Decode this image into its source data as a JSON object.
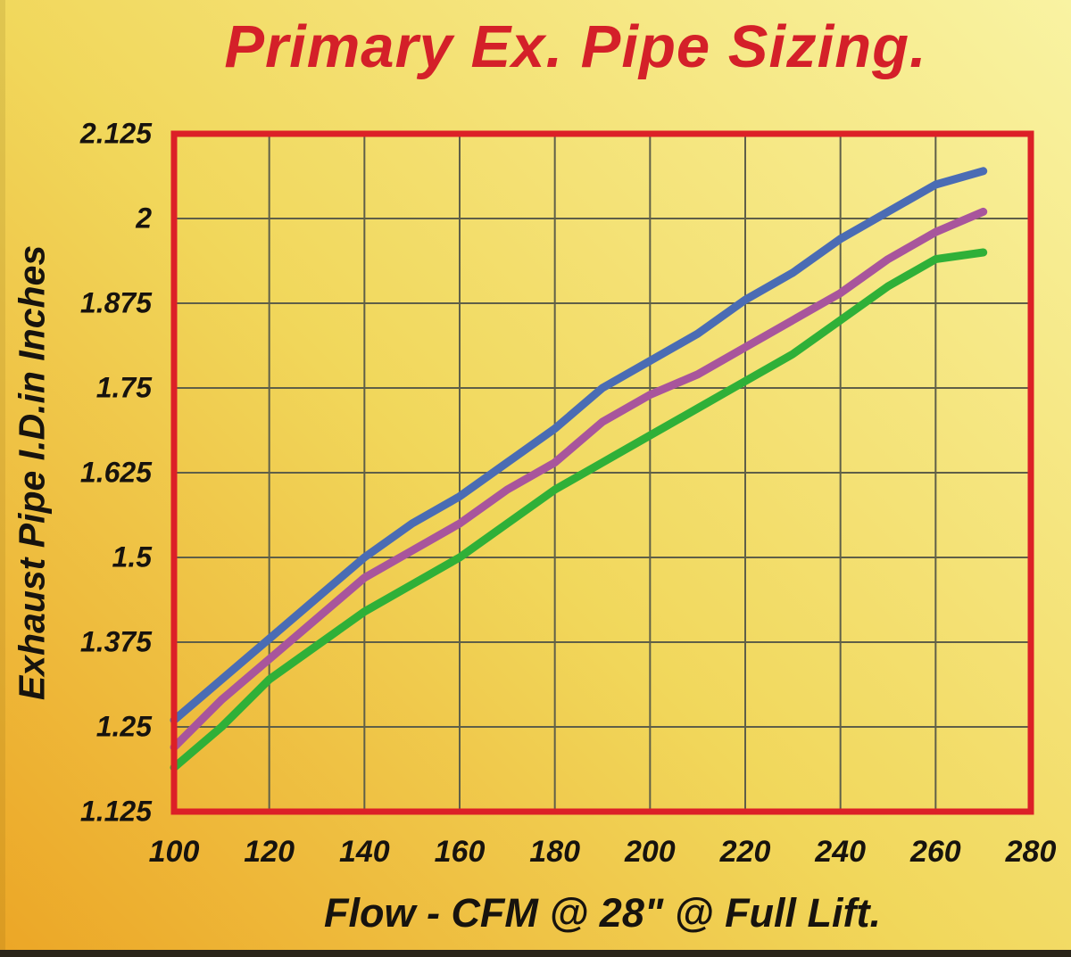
{
  "colors": {
    "title_red": "#d42029",
    "border_red": "#dc2027",
    "grid": "#5f5f48",
    "text_ink": "#17130e",
    "background_gold_dark": "#eca626",
    "background_gold_mid": "#f1d75b",
    "background_gold_light": "#f9f3a2",
    "bottom_strip": "#2b2519",
    "series_blue": "#4a6cb4",
    "series_purple": "#a8559c",
    "series_green": "#2fb038"
  },
  "chart_data": {
    "type": "line",
    "title": "Primary Ex. Pipe Sizing.",
    "xlabel": "Flow - CFM @ 28\" @ Full Lift.",
    "ylabel": "Exhaust Pipe I.D.in Inches",
    "xlim": [
      100,
      280
    ],
    "ylim": [
      1.125,
      2.125
    ],
    "grid": true,
    "legend_position": "none",
    "x_ticks": [
      100,
      120,
      140,
      160,
      180,
      200,
      220,
      240,
      260,
      280
    ],
    "x_tick_labels": [
      "100",
      "120",
      "140",
      "160",
      "180",
      "200",
      "220",
      "240",
      "260",
      "280"
    ],
    "y_ticks": [
      2.125,
      2.0,
      1.875,
      1.75,
      1.625,
      1.5,
      1.375,
      1.25,
      1.125
    ],
    "y_tick_labels": [
      "2.125",
      "2",
      "1.875",
      "1.75",
      "1.625",
      "1.5",
      "1.375",
      "1.25",
      "1.125"
    ],
    "series": [
      {
        "name": "blue",
        "color_key": "series_blue",
        "points": [
          [
            100,
            1.26
          ],
          [
            110,
            1.32
          ],
          [
            120,
            1.38
          ],
          [
            130,
            1.44
          ],
          [
            140,
            1.5
          ],
          [
            150,
            1.55
          ],
          [
            160,
            1.59
          ],
          [
            170,
            1.64
          ],
          [
            180,
            1.69
          ],
          [
            190,
            1.75
          ],
          [
            200,
            1.79
          ],
          [
            210,
            1.83
          ],
          [
            220,
            1.88
          ],
          [
            230,
            1.92
          ],
          [
            240,
            1.97
          ],
          [
            250,
            2.01
          ],
          [
            260,
            2.05
          ],
          [
            270,
            2.07
          ]
        ]
      },
      {
        "name": "purple",
        "color_key": "series_purple",
        "points": [
          [
            100,
            1.22
          ],
          [
            110,
            1.29
          ],
          [
            120,
            1.35
          ],
          [
            130,
            1.41
          ],
          [
            140,
            1.47
          ],
          [
            150,
            1.51
          ],
          [
            160,
            1.55
          ],
          [
            170,
            1.6
          ],
          [
            180,
            1.64
          ],
          [
            190,
            1.7
          ],
          [
            200,
            1.74
          ],
          [
            210,
            1.77
          ],
          [
            220,
            1.81
          ],
          [
            230,
            1.85
          ],
          [
            240,
            1.89
          ],
          [
            250,
            1.94
          ],
          [
            260,
            1.98
          ],
          [
            270,
            2.01
          ]
        ]
      },
      {
        "name": "green",
        "color_key": "series_green",
        "points": [
          [
            100,
            1.19
          ],
          [
            110,
            1.25
          ],
          [
            120,
            1.32
          ],
          [
            130,
            1.37
          ],
          [
            140,
            1.42
          ],
          [
            150,
            1.46
          ],
          [
            160,
            1.5
          ],
          [
            170,
            1.55
          ],
          [
            180,
            1.6
          ],
          [
            190,
            1.64
          ],
          [
            200,
            1.68
          ],
          [
            210,
            1.72
          ],
          [
            220,
            1.76
          ],
          [
            230,
            1.8
          ],
          [
            240,
            1.85
          ],
          [
            250,
            1.9
          ],
          [
            260,
            1.94
          ],
          [
            270,
            1.95
          ]
        ]
      }
    ]
  }
}
